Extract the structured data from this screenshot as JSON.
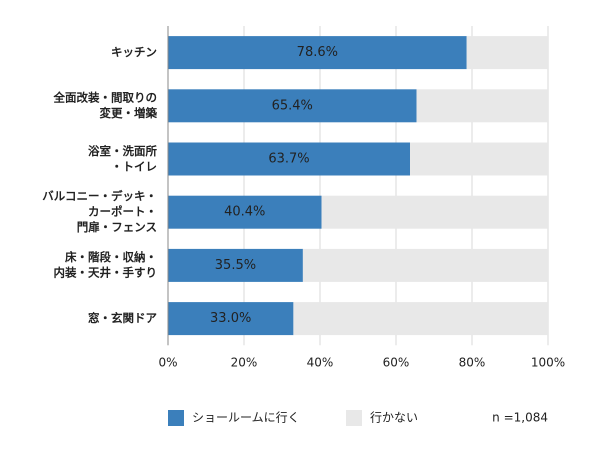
{
  "chart_data": {
    "type": "stacked-bar-horizontal",
    "categories": [
      [
        "キッチン"
      ],
      [
        "全面改装・間取りの",
        "変更・増築"
      ],
      [
        "浴室・洗面所",
        "・トイレ"
      ],
      [
        "バルコニー・デッキ・",
        "カーポート・",
        "門扉・フェンス"
      ],
      [
        "床・階段・収納・",
        "内装・天井・手すり"
      ],
      [
        "窓・玄関ドア"
      ]
    ],
    "series": [
      {
        "name": "ショールームに行く",
        "color": "#3b7fbb",
        "values": [
          78.6,
          65.4,
          63.7,
          40.4,
          35.5,
          33.0
        ],
        "value_labels": [
          "78.6%",
          "65.4%",
          "63.7%",
          "40.4%",
          "35.5%",
          "33.0%"
        ]
      },
      {
        "name": "行かない",
        "color": "#e8e8e8",
        "values": [
          21.4,
          34.6,
          36.3,
          59.6,
          64.5,
          67.0
        ]
      }
    ],
    "xlim": [
      0,
      100
    ],
    "xticks": [
      {
        "value": 0,
        "label": "0%"
      },
      {
        "value": 20,
        "label": "20%"
      },
      {
        "value": 40,
        "label": "40%"
      },
      {
        "value": 60,
        "label": "60%"
      },
      {
        "value": 80,
        "label": "80%"
      },
      {
        "value": 100,
        "label": "100%"
      }
    ],
    "grid": true,
    "annotation": "n =1,084"
  }
}
